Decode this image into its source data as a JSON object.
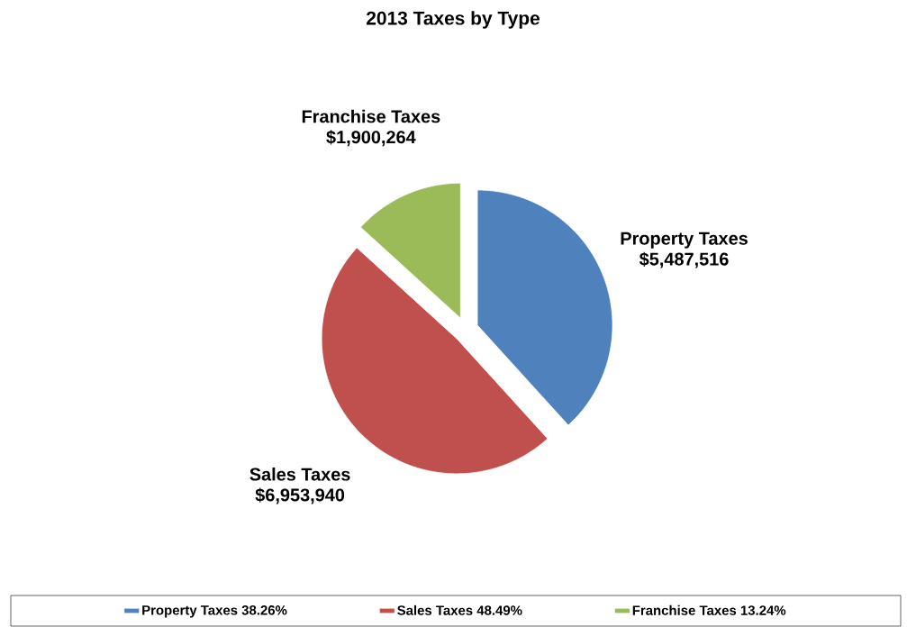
{
  "chart_data": {
    "type": "pie",
    "title": "2013 Taxes by Type",
    "categories": [
      "Property Taxes",
      "Sales Taxes",
      "Franchise Taxes"
    ],
    "values": [
      5487516,
      6953940,
      1900264
    ],
    "value_labels": [
      "$5,487,516",
      "$6,953,940",
      "$1,900,264"
    ],
    "colors": [
      "#4f81bd",
      "#c0504d",
      "#9bbb59"
    ],
    "annotations": [
      "38.26%",
      "48.49%",
      "13.24%"
    ],
    "legend": "bottom"
  }
}
